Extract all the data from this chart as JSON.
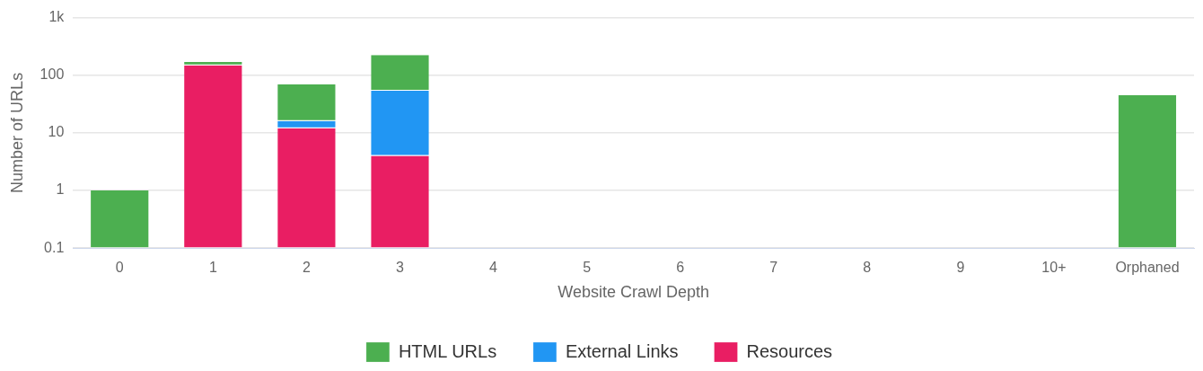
{
  "chart_data": {
    "type": "bar",
    "xlabel": "Website Crawl Depth",
    "ylabel": "Number of URLs",
    "categories": [
      "0",
      "1",
      "2",
      "3",
      "4",
      "5",
      "6",
      "7",
      "8",
      "9",
      "10+",
      "Orphaned"
    ],
    "stacked": true,
    "log": true,
    "grid": "y",
    "legend": "bottom",
    "ylim": [
      0.1,
      1000
    ],
    "yticks": [
      0.1,
      1,
      10,
      100,
      {
        "value": 1000,
        "label": "1k"
      }
    ],
    "series": [
      {
        "name": "Resources",
        "color": "#e91e63",
        "values": [
          null,
          148,
          12,
          4,
          null,
          null,
          null,
          null,
          null,
          null,
          null,
          null
        ]
      },
      {
        "name": "External Links",
        "color": "#2196f3",
        "values": [
          null,
          null,
          4,
          50,
          null,
          null,
          null,
          null,
          null,
          null,
          null,
          null
        ]
      },
      {
        "name": "HTML URLs",
        "color": "#4caf50",
        "values": [
          1,
          22,
          54,
          170,
          null,
          null,
          null,
          null,
          null,
          null,
          null,
          45
        ]
      }
    ]
  }
}
